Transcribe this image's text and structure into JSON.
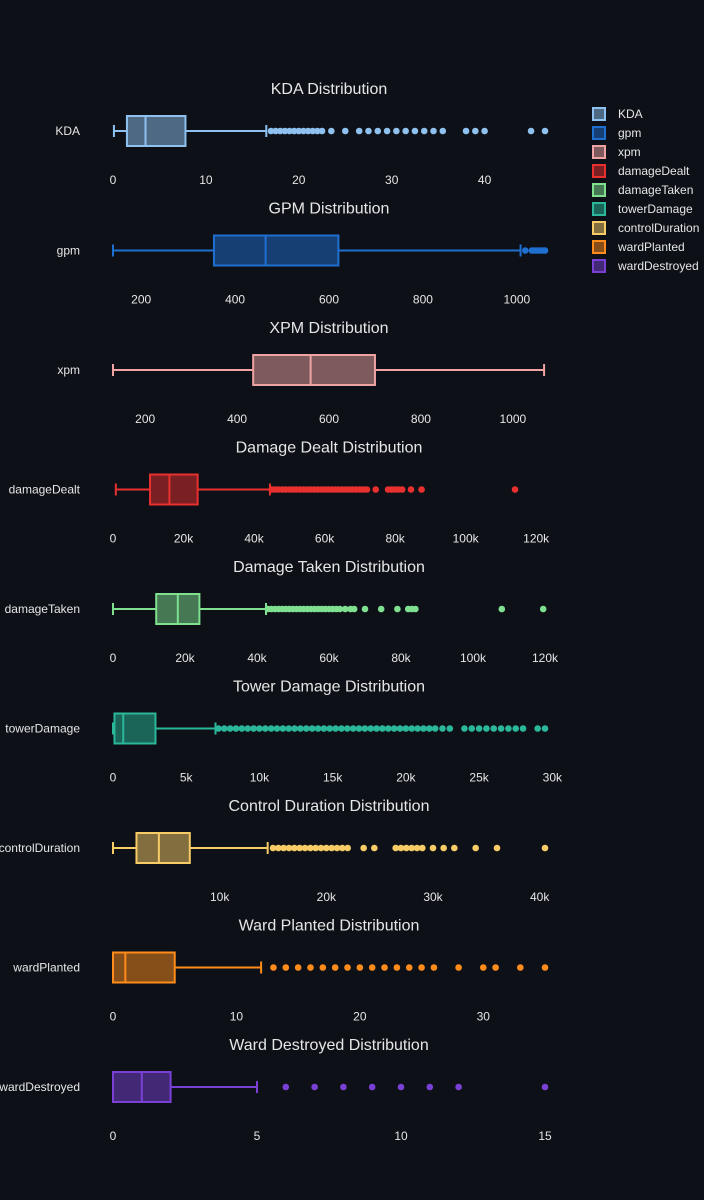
{
  "theme": {
    "background": "#0d1117",
    "title_color": "#e6e6e6",
    "tick_color": "#e6e6e6"
  },
  "legend": {
    "placement": "top-right",
    "items": [
      {
        "name": "KDA",
        "color": "#8ec1f0"
      },
      {
        "name": "gpm",
        "color": "#1f6fd1"
      },
      {
        "name": "xpm",
        "color": "#f0a3a3"
      },
      {
        "name": "damageDealt",
        "color": "#e8302f"
      },
      {
        "name": "damageTaken",
        "color": "#7fe08f"
      },
      {
        "name": "towerDamage",
        "color": "#2ab79a"
      },
      {
        "name": "controlDuration",
        "color": "#f7cc66"
      },
      {
        "name": "wardPlanted",
        "color": "#ff8c1a"
      },
      {
        "name": "wardDestroyed",
        "color": "#7a40d6"
      }
    ]
  },
  "chart_data": [
    {
      "type": "box",
      "title": "KDA Distribution",
      "series": "KDA",
      "color": "#8ec1f0",
      "xlim": [
        0,
        46.5
      ],
      "ticks": [
        0,
        10,
        20,
        30,
        40
      ],
      "tick_labels": [
        "0",
        "10",
        "20",
        "30",
        "40"
      ],
      "min": 0.1,
      "q1": 1.5,
      "median": 3.5,
      "q3": 7.8,
      "upper_fence": 16.5,
      "outliers": [
        17,
        17.5,
        18,
        18.5,
        19,
        19.5,
        20,
        20.5,
        21,
        21.5,
        22,
        22.5,
        23.5,
        25,
        26.5,
        27.5,
        28.5,
        29.5,
        30.5,
        31.5,
        32.5,
        33.5,
        34.5,
        35.5,
        38,
        39,
        40,
        45,
        47
      ]
    },
    {
      "type": "box",
      "title": "GPM Distribution",
      "series": "gpm",
      "color": "#1f6fd1",
      "xlim": [
        140,
        1060
      ],
      "ticks": [
        200,
        400,
        600,
        800,
        1000
      ],
      "tick_labels": [
        "200",
        "400",
        "600",
        "800",
        "1000"
      ],
      "min": 140,
      "q1": 355,
      "median": 465,
      "q3": 620,
      "upper_fence": 1008,
      "outliers": [
        1018,
        1032,
        1038,
        1044,
        1050,
        1056,
        1062
      ]
    },
    {
      "type": "box",
      "title": "XPM Distribution",
      "series": "xpm",
      "color": "#f0a3a3",
      "xlim": [
        130,
        1070
      ],
      "ticks": [
        200,
        400,
        600,
        800,
        1000
      ],
      "tick_labels": [
        "200",
        "400",
        "600",
        "800",
        "1000"
      ],
      "min": 130,
      "q1": 435,
      "median": 560,
      "q3": 700,
      "upper_fence": 1068,
      "outliers": []
    },
    {
      "type": "box",
      "title": "Damage Dealt Distribution",
      "series": "damageDealt",
      "color": "#e8302f",
      "xlim": [
        0,
        122500
      ],
      "ticks": [
        0,
        20000,
        40000,
        60000,
        80000,
        100000,
        120000
      ],
      "tick_labels": [
        "0",
        "20k",
        "40k",
        "60k",
        "80k",
        "100k",
        "120k"
      ],
      "min": 800,
      "q1": 10500,
      "median": 16000,
      "q3": 24000,
      "upper_fence": 44500,
      "outliers": [
        45000,
        46000,
        47000,
        48000,
        49000,
        50000,
        51000,
        52000,
        53000,
        54000,
        55000,
        56000,
        57000,
        58000,
        59000,
        60000,
        61000,
        62000,
        63000,
        64000,
        65000,
        66000,
        67000,
        68000,
        69000,
        70000,
        71000,
        72000,
        74500,
        78000,
        79000,
        80000,
        81000,
        82000,
        84500,
        87500,
        114000
      ]
    },
    {
      "type": "box",
      "title": "Damage Taken Distribution",
      "series": "damageTaken",
      "color": "#7fe08f",
      "xlim": [
        0,
        120000
      ],
      "ticks": [
        0,
        20000,
        40000,
        60000,
        80000,
        100000,
        120000
      ],
      "tick_labels": [
        "0",
        "20k",
        "40k",
        "60k",
        "80k",
        "100k",
        "120k"
      ],
      "min": 0,
      "q1": 12000,
      "median": 18000,
      "q3": 24000,
      "upper_fence": 42500,
      "outliers": [
        43000,
        44000,
        45000,
        46000,
        47000,
        48000,
        49000,
        50000,
        51000,
        52000,
        53000,
        54000,
        55000,
        56000,
        57000,
        58000,
        59000,
        60000,
        61000,
        62000,
        63000,
        64500,
        66000,
        67000,
        70000,
        74500,
        79000,
        82000,
        83000,
        84000,
        108000,
        119500
      ]
    },
    {
      "type": "box",
      "title": "Tower Damage Distribution",
      "series": "towerDamage",
      "color": "#2ab79a",
      "xlim": [
        0,
        29500
      ],
      "ticks": [
        0,
        5000,
        10000,
        15000,
        20000,
        25000,
        30000
      ],
      "tick_labels": [
        "0",
        "5k",
        "10k",
        "15k",
        "20k",
        "25k",
        "30k"
      ],
      "min": 0,
      "q1": 100,
      "median": 700,
      "q3": 2900,
      "upper_fence": 7000,
      "outliers": [
        7200,
        7600,
        8000,
        8400,
        8800,
        9200,
        9600,
        10000,
        10400,
        10800,
        11200,
        11600,
        12000,
        12400,
        12800,
        13200,
        13600,
        14000,
        14400,
        14800,
        15200,
        15600,
        16000,
        16400,
        16800,
        17200,
        17600,
        18000,
        18400,
        18800,
        19200,
        19600,
        20000,
        20400,
        20800,
        21200,
        21600,
        22000,
        22500,
        23000,
        24000,
        24500,
        25000,
        25500,
        26000,
        26500,
        27000,
        27500,
        28000,
        29000,
        29500
      ]
    },
    {
      "type": "box",
      "title": "Control Duration Distribution",
      "series": "controlDuration",
      "color": "#f7cc66",
      "xlim": [
        0,
        40500
      ],
      "ticks": [
        10000,
        20000,
        30000,
        40000
      ],
      "tick_labels": [
        "10k",
        "20k",
        "30k",
        "40k"
      ],
      "min": 0,
      "q1": 2200,
      "median": 4300,
      "q3": 7200,
      "upper_fence": 14500,
      "outliers": [
        15000,
        15500,
        16000,
        16500,
        17000,
        17500,
        18000,
        18500,
        19000,
        19500,
        20000,
        20500,
        21000,
        21500,
        22000,
        23500,
        24500,
        26500,
        27000,
        27500,
        28000,
        28500,
        29000,
        30000,
        31000,
        32000,
        34000,
        36000,
        40500
      ]
    },
    {
      "type": "box",
      "title": "Ward Planted Distribution",
      "series": "wardPlanted",
      "color": "#ff8c1a",
      "xlim": [
        0,
        35
      ],
      "ticks": [
        0,
        10,
        20,
        30
      ],
      "tick_labels": [
        "0",
        "10",
        "20",
        "30"
      ],
      "min": 0,
      "q1": 0,
      "median": 1,
      "q3": 5,
      "upper_fence": 12,
      "outliers": [
        13,
        14,
        15,
        16,
        17,
        18,
        19,
        20,
        21,
        22,
        23,
        24,
        25,
        26,
        28,
        30,
        31,
        33,
        35
      ]
    },
    {
      "type": "box",
      "title": "Ward Destroyed Distribution",
      "series": "wardDestroyed",
      "color": "#7a40d6",
      "xlim": [
        0,
        15
      ],
      "ticks": [
        0,
        5,
        10,
        15
      ],
      "tick_labels": [
        "0",
        "5",
        "10",
        "15"
      ],
      "min": 0,
      "q1": 0,
      "median": 1,
      "q3": 2,
      "upper_fence": 5,
      "outliers": [
        6,
        7,
        8,
        9,
        10,
        11,
        12,
        15
      ]
    }
  ]
}
